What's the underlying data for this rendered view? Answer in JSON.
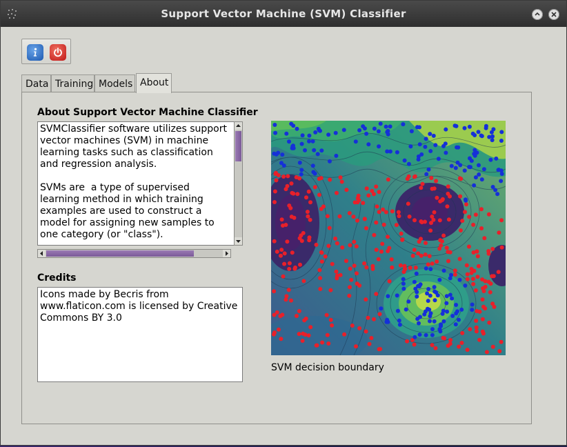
{
  "window": {
    "title": "Support Vector Machine (SVM) Classifier"
  },
  "toolbar": {
    "info_icon": "info-icon",
    "power_icon": "power-icon"
  },
  "tabs": [
    {
      "label": "Data",
      "active": false
    },
    {
      "label": "Training",
      "active": false
    },
    {
      "label": "Models",
      "active": false
    },
    {
      "label": "About",
      "active": true
    }
  ],
  "about": {
    "heading": "About Support Vector Machine Classifier",
    "text": "SVMClassifier software utilizes support vector machines (SVM) in machine learning tasks such as classification and regression analysis.\n\nSVMs are  a type of supervised learning method in which training examples are used to construct a model for assigning new samples to one category (or \"class\").\n\nSVM learning algorithms attempt to"
  },
  "credits": {
    "heading": "Credits",
    "text": "Icons made by Becris from www.flaticon.com is licensed by Creative Commons BY 3.0"
  },
  "figure": {
    "caption": "SVM decision boundary"
  },
  "colors": {
    "class_a": "#e8202a",
    "class_b": "#1530d8",
    "scrollbar_thumb": "#8a6aa8"
  }
}
